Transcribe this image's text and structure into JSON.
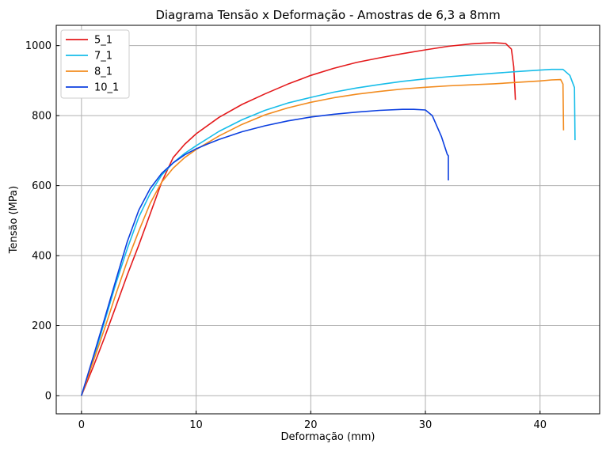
{
  "chart_data": {
    "type": "line",
    "title": "Diagrama Tensão x Deformação - Amostras de 6,3 a 8mm",
    "xlabel": "Deformação (mm)",
    "ylabel": "Tensão (MPa)",
    "xlim": [
      -2.2,
      45.2
    ],
    "ylim": [
      -52,
      1058
    ],
    "xticks": [
      0,
      10,
      20,
      30,
      40
    ],
    "yticks": [
      0,
      200,
      400,
      600,
      800,
      1000
    ],
    "grid": true,
    "legend_position": "top-left",
    "series": [
      {
        "name": "5_1",
        "color": "#e41a1c",
        "x": [
          0,
          1,
          2,
          3,
          4,
          5,
          6,
          7,
          8,
          9,
          10,
          12,
          14,
          16,
          18,
          20,
          22,
          24,
          26,
          28,
          30,
          32,
          34,
          35,
          36,
          37,
          37.5,
          37.7,
          37.8,
          37.85
        ],
        "y": [
          0,
          80,
          165,
          255,
          345,
          430,
          520,
          610,
          680,
          718,
          748,
          795,
          832,
          862,
          890,
          915,
          935,
          952,
          965,
          977,
          988,
          998,
          1005,
          1007,
          1008,
          1006,
          990,
          940,
          880,
          845
        ]
      },
      {
        "name": "7_1",
        "color": "#17bde9",
        "x": [
          0,
          1,
          2,
          3,
          4,
          5,
          6,
          7,
          8,
          9,
          10,
          12,
          14,
          16,
          18,
          20,
          22,
          24,
          26,
          28,
          30,
          32,
          34,
          36,
          38,
          40,
          41,
          42,
          42.6,
          43,
          43.05
        ],
        "y": [
          0,
          100,
          210,
          320,
          420,
          510,
          578,
          630,
          665,
          692,
          714,
          755,
          788,
          815,
          836,
          852,
          867,
          879,
          889,
          898,
          905,
          911,
          916,
          921,
          926,
          930,
          932,
          932,
          915,
          880,
          730
        ]
      },
      {
        "name": "8_1",
        "color": "#f28b1e",
        "x": [
          0,
          1,
          2,
          3,
          4,
          5,
          6,
          7,
          8,
          9,
          10,
          12,
          14,
          16,
          18,
          20,
          22,
          24,
          26,
          28,
          30,
          32,
          34,
          36,
          38,
          40,
          41,
          41.8,
          42,
          42.05
        ],
        "y": [
          0,
          95,
          190,
          290,
          385,
          470,
          550,
          610,
          650,
          680,
          703,
          742,
          775,
          802,
          822,
          838,
          851,
          861,
          869,
          876,
          881,
          885,
          888,
          891,
          895,
          899,
          902,
          903,
          890,
          758
        ]
      },
      {
        "name": "10_1",
        "color": "#0b3fe0",
        "x": [
          0,
          1,
          2,
          3,
          4,
          5,
          6,
          7,
          8,
          9,
          10,
          11,
          12,
          14,
          16,
          18,
          20,
          22,
          24,
          26,
          28,
          29,
          30,
          30.6,
          31,
          31.4,
          31.7,
          31.9,
          32,
          32
        ],
        "y": [
          0,
          108,
          218,
          330,
          440,
          530,
          592,
          635,
          665,
          688,
          705,
          719,
          732,
          754,
          771,
          785,
          796,
          804,
          810,
          815,
          818,
          818,
          816,
          800,
          770,
          740,
          710,
          690,
          685,
          615
        ]
      }
    ]
  }
}
